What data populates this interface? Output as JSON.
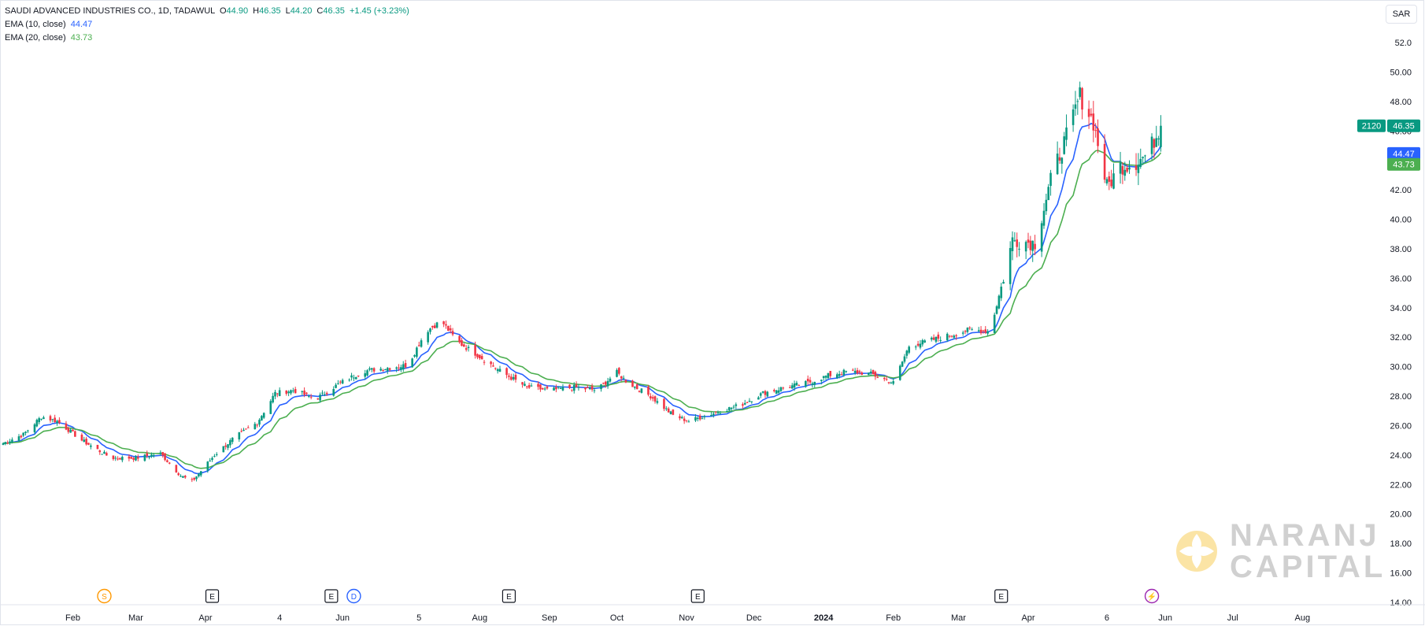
{
  "legend": {
    "title": "SAUDI ADVANCED INDUSTRIES CO., 1D, TADAWUL",
    "o_label": "O",
    "o_value": "44.90",
    "h_label": "H",
    "h_value": "46.35",
    "l_label": "L",
    "l_value": "44.20",
    "c_label": "C",
    "c_value": "46.35",
    "change": "+1.45 (+3.23%)",
    "ema10_label": "EMA (10, close)",
    "ema10_value": "44.47",
    "ema20_label": "EMA (20, close)",
    "ema20_value": "43.73"
  },
  "currency_button": "SAR",
  "price_tags": {
    "volume": "2120",
    "last": "46.35",
    "ema10": "44.47",
    "ema20": "43.73"
  },
  "watermark": {
    "line1": "NARANJ",
    "line2": "CAPITAL"
  },
  "event_markers": [
    {
      "letter": "S",
      "kind": "split",
      "color": "#ff9800",
      "date": "2023-02-15"
    },
    {
      "letter": "E",
      "kind": "earnings",
      "color": "#131722",
      "date": "2023-04-04"
    },
    {
      "letter": "E",
      "kind": "earnings",
      "color": "#131722",
      "date": "2023-05-27"
    },
    {
      "letter": "D",
      "kind": "dividend",
      "color": "#2962ff",
      "date": "2023-06-06"
    },
    {
      "letter": "E",
      "kind": "earnings",
      "color": "#131722",
      "date": "2023-08-14"
    },
    {
      "letter": "E",
      "kind": "earnings",
      "color": "#131722",
      "date": "2023-11-06"
    },
    {
      "letter": "E",
      "kind": "earnings",
      "color": "#131722",
      "date": "2024-03-20"
    },
    {
      "letter": "⚡",
      "kind": "lightning",
      "color": "#9c27b0",
      "date": "2024-05-26"
    }
  ],
  "colors": {
    "up": "#089981",
    "down": "#f23645",
    "ema10": "#2962ff",
    "ema20": "#4caf50",
    "axis_text": "#131722"
  },
  "chart_data": {
    "type": "candlestick",
    "y_axis": {
      "min": 14,
      "max": 52,
      "ticks": [
        "14.00",
        "16.00",
        "18.00",
        "20.00",
        "22.00",
        "24.00",
        "26.00",
        "28.00",
        "30.00",
        "32.00",
        "34.00",
        "36.00",
        "38.00",
        "40.00",
        "42.00",
        "44.00",
        "46.00",
        "48.00",
        "50.00",
        "52.0"
      ]
    },
    "x_axis": {
      "min": "2023-01-01",
      "max": "2024-08-31",
      "ticks": [
        {
          "label": "Feb",
          "date": "2023-02-01"
        },
        {
          "label": "Mar",
          "date": "2023-03-01"
        },
        {
          "label": "Apr",
          "date": "2023-04-01"
        },
        {
          "label": "4",
          "date": "2023-05-04"
        },
        {
          "label": "Jun",
          "date": "2023-06-01"
        },
        {
          "label": "5",
          "date": "2023-07-05"
        },
        {
          "label": "Aug",
          "date": "2023-08-01"
        },
        {
          "label": "Sep",
          "date": "2023-09-01"
        },
        {
          "label": "Oct",
          "date": "2023-10-01"
        },
        {
          "label": "Nov",
          "date": "2023-11-01"
        },
        {
          "label": "Dec",
          "date": "2023-12-01"
        },
        {
          "label": "2024",
          "date": "2024-01-01"
        },
        {
          "label": "Feb",
          "date": "2024-02-01"
        },
        {
          "label": "Mar",
          "date": "2024-03-01"
        },
        {
          "label": "Apr",
          "date": "2024-04-01"
        },
        {
          "label": "6",
          "date": "2024-05-06"
        },
        {
          "label": "Jun",
          "date": "2024-06-01"
        },
        {
          "label": "Jul",
          "date": "2024-07-01"
        },
        {
          "label": "Aug",
          "date": "2024-08-01"
        }
      ]
    },
    "last_date": "2024-05-30",
    "close_path": [
      [
        "2023-01-01",
        24.8
      ],
      [
        "2023-01-10",
        25.4
      ],
      [
        "2023-01-18",
        26.6
      ],
      [
        "2023-01-25",
        26.3
      ],
      [
        "2023-02-05",
        25.0
      ],
      [
        "2023-02-18",
        23.8
      ],
      [
        "2023-03-01",
        23.8
      ],
      [
        "2023-03-12",
        24.1
      ],
      [
        "2023-03-21",
        22.6
      ],
      [
        "2023-03-26",
        22.2
      ],
      [
        "2023-04-05",
        24.0
      ],
      [
        "2023-04-14",
        25.2
      ],
      [
        "2023-04-24",
        26.2
      ],
      [
        "2023-05-02",
        28.2
      ],
      [
        "2023-05-10",
        28.4
      ],
      [
        "2023-05-20",
        27.8
      ],
      [
        "2023-05-30",
        28.8
      ],
      [
        "2023-06-10",
        29.7
      ],
      [
        "2023-06-20",
        29.9
      ],
      [
        "2023-06-30",
        30.1
      ],
      [
        "2023-07-08",
        32.4
      ],
      [
        "2023-07-15",
        33.1
      ],
      [
        "2023-07-22",
        31.7
      ],
      [
        "2023-07-30",
        30.9
      ],
      [
        "2023-08-10",
        29.7
      ],
      [
        "2023-08-22",
        28.6
      ],
      [
        "2023-09-01",
        28.4
      ],
      [
        "2023-09-12",
        28.6
      ],
      [
        "2023-09-22",
        28.4
      ],
      [
        "2023-10-01",
        29.6
      ],
      [
        "2023-10-06",
        28.9
      ],
      [
        "2023-10-16",
        28.0
      ],
      [
        "2023-10-26",
        26.7
      ],
      [
        "2023-11-02",
        26.3
      ],
      [
        "2023-11-12",
        26.8
      ],
      [
        "2023-11-25",
        27.4
      ],
      [
        "2023-12-05",
        28.2
      ],
      [
        "2023-12-15",
        28.6
      ],
      [
        "2023-12-25",
        28.9
      ],
      [
        "2024-01-03",
        29.4
      ],
      [
        "2024-01-12",
        29.7
      ],
      [
        "2024-01-22",
        29.5
      ],
      [
        "2024-02-01",
        28.9
      ],
      [
        "2024-02-08",
        31.4
      ],
      [
        "2024-02-18",
        31.8
      ],
      [
        "2024-02-28",
        32.2
      ],
      [
        "2024-03-06",
        32.5
      ],
      [
        "2024-03-15",
        32.4
      ],
      [
        "2024-03-20",
        35.4
      ],
      [
        "2024-03-25",
        38.6
      ],
      [
        "2024-04-04",
        38.4
      ],
      [
        "2024-04-12",
        43.2
      ],
      [
        "2024-04-18",
        45.6
      ],
      [
        "2024-04-24",
        48.4
      ],
      [
        "2024-04-30",
        46.6
      ],
      [
        "2024-05-06",
        42.2
      ],
      [
        "2024-05-12",
        43.6
      ],
      [
        "2024-05-18",
        43.8
      ],
      [
        "2024-05-24",
        44.4
      ],
      [
        "2024-05-30",
        46.35
      ]
    ],
    "series": [
      {
        "name": "EMA (10, close)",
        "period": 10,
        "color": "#2962ff"
      },
      {
        "name": "EMA (20, close)",
        "period": 20,
        "color": "#4caf50"
      }
    ]
  }
}
